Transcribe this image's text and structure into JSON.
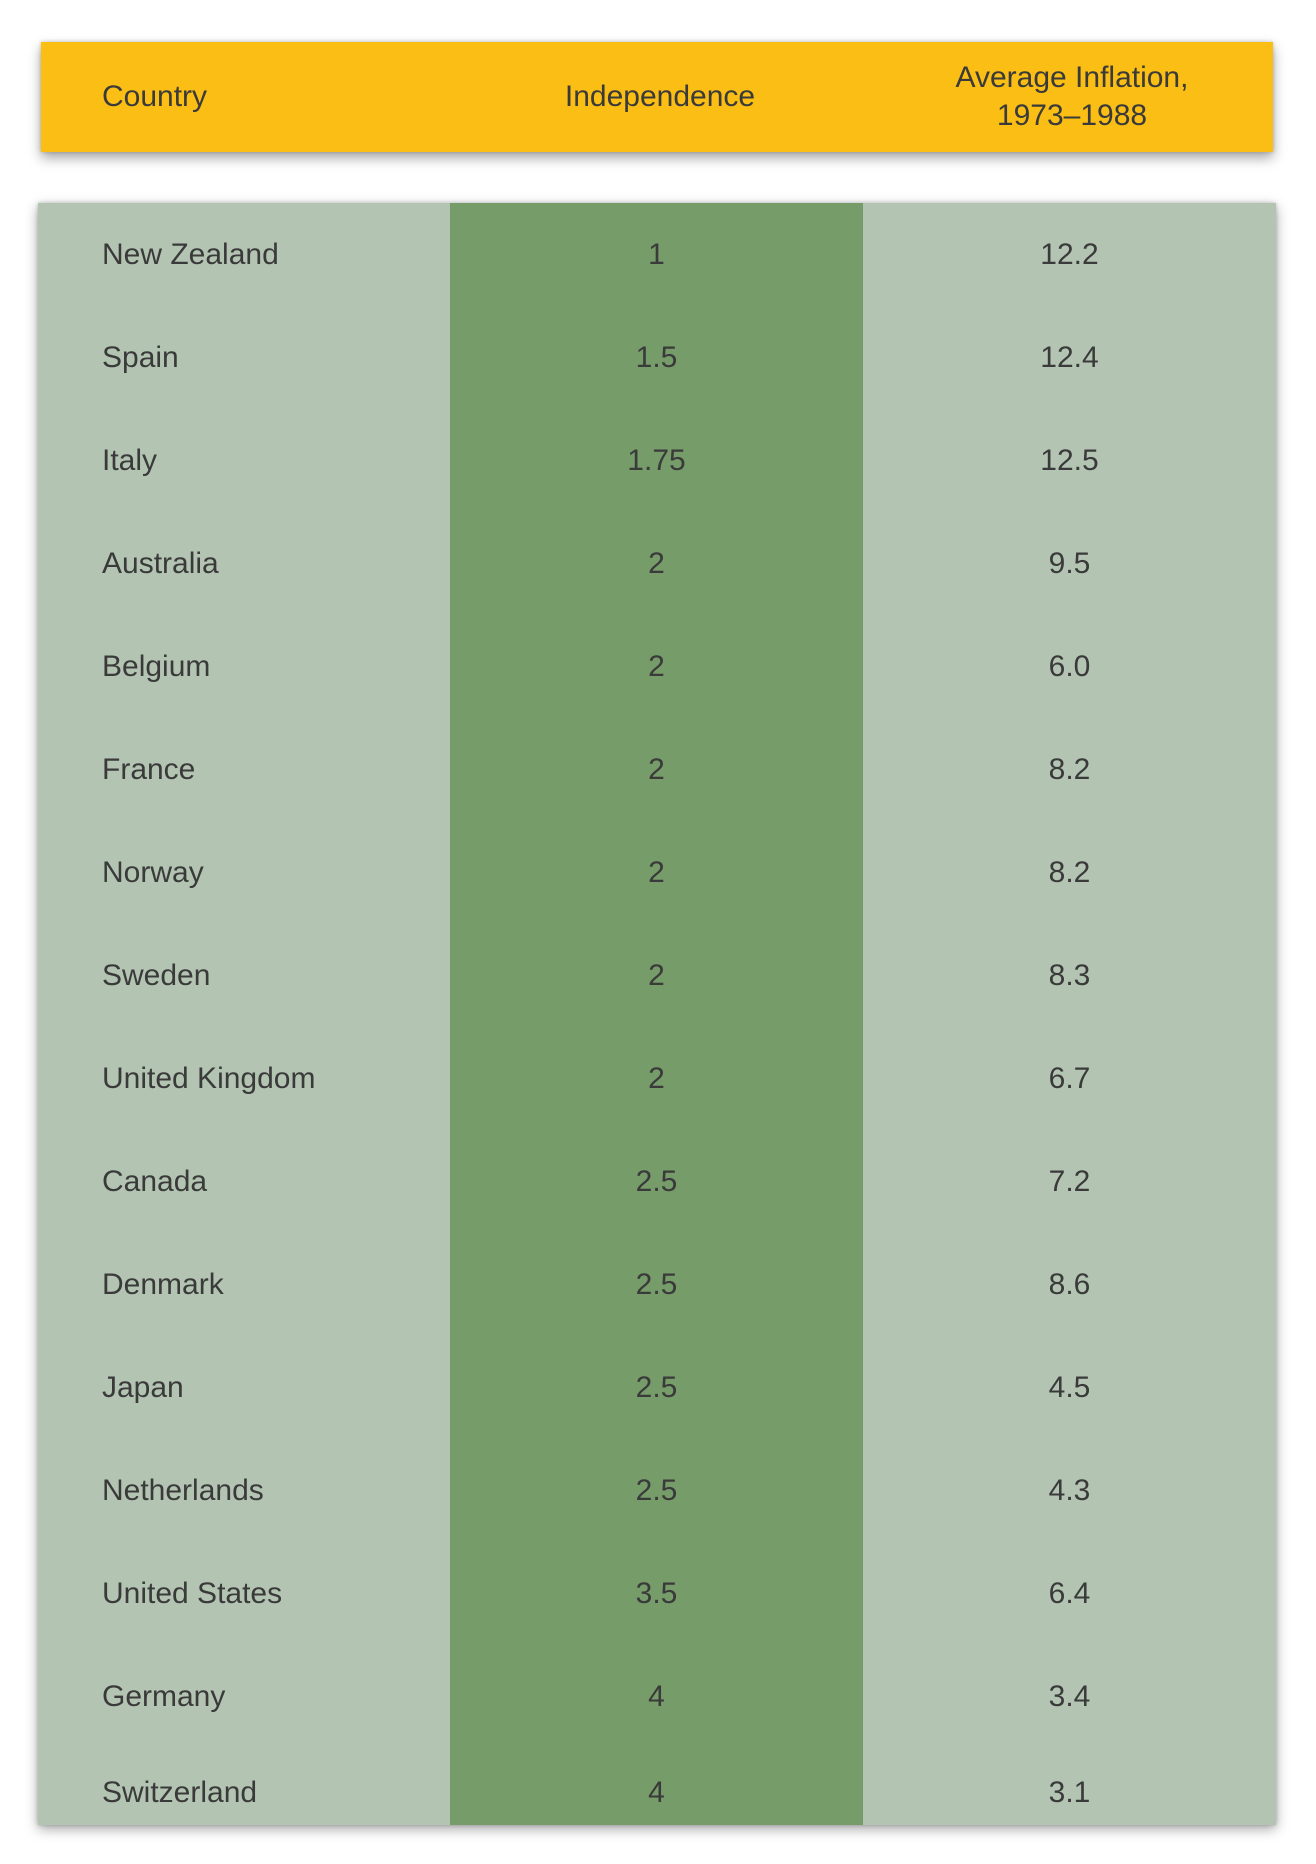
{
  "header": {
    "country": "Country",
    "independence": "Independence",
    "inflation_line1": "Average Inflation,",
    "inflation_line2": "1973–1988"
  },
  "rows": [
    {
      "country": "New Zealand",
      "independence": "1",
      "inflation": "12.2"
    },
    {
      "country": "Spain",
      "independence": "1.5",
      "inflation": "12.4"
    },
    {
      "country": "Italy",
      "independence": "1.75",
      "inflation": "12.5"
    },
    {
      "country": "Australia",
      "independence": "2",
      "inflation": "9.5"
    },
    {
      "country": "Belgium",
      "independence": "2",
      "inflation": "6.0"
    },
    {
      "country": "France",
      "independence": "2",
      "inflation": "8.2"
    },
    {
      "country": "Norway",
      "independence": "2",
      "inflation": "8.2"
    },
    {
      "country": "Sweden",
      "independence": "2",
      "inflation": "8.3"
    },
    {
      "country": "United Kingdom",
      "independence": "2",
      "inflation": "6.7"
    },
    {
      "country": "Canada",
      "independence": "2.5",
      "inflation": "7.2"
    },
    {
      "country": "Denmark",
      "independence": "2.5",
      "inflation": "8.6"
    },
    {
      "country": "Japan",
      "independence": "2.5",
      "inflation": "4.5"
    },
    {
      "country": "Netherlands",
      "independence": "2.5",
      "inflation": "4.3"
    },
    {
      "country": "United States",
      "independence": "3.5",
      "inflation": "6.4"
    },
    {
      "country": "Germany",
      "independence": "4",
      "inflation": "3.4"
    },
    {
      "country": "Switzerland",
      "independence": "4",
      "inflation": "3.1"
    }
  ],
  "colors": {
    "header_bg": "#fbbe14",
    "row_bg": "#b3c5b2",
    "mid_column_bg": "#769c69",
    "text": "#3a3a3a"
  }
}
